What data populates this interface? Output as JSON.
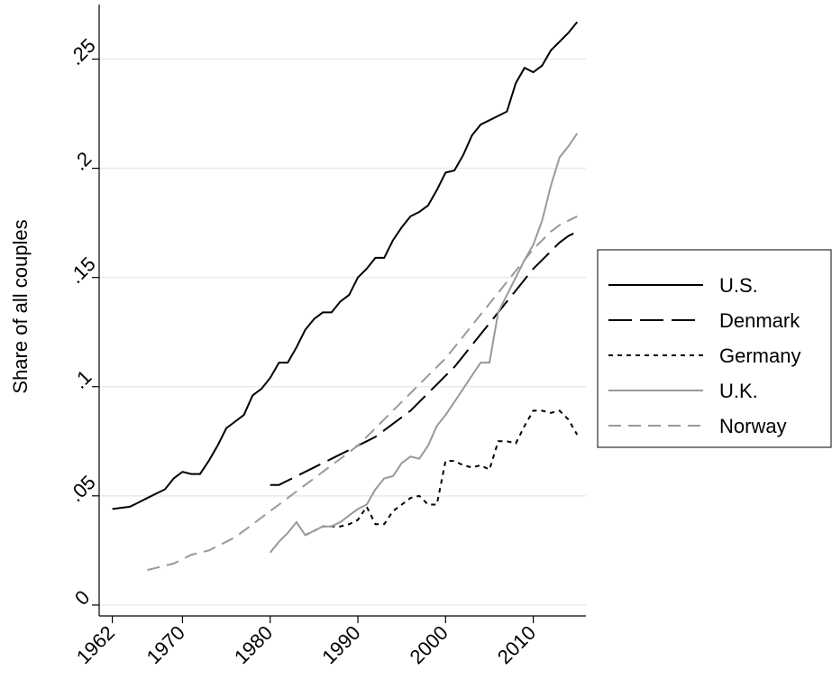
{
  "chart_data": {
    "type": "line",
    "ylabel": "Share of all couples",
    "x": [
      1962,
      1963,
      1964,
      1965,
      1966,
      1967,
      1968,
      1969,
      1970,
      1971,
      1972,
      1973,
      1974,
      1975,
      1976,
      1977,
      1978,
      1979,
      1980,
      1981,
      1982,
      1983,
      1984,
      1985,
      1986,
      1987,
      1988,
      1989,
      1990,
      1991,
      1992,
      1993,
      1994,
      1995,
      1996,
      1997,
      1998,
      1999,
      2000,
      2001,
      2002,
      2003,
      2004,
      2005,
      2006,
      2007,
      2008,
      2009,
      2010,
      2011,
      2012,
      2013,
      2014,
      2015
    ],
    "xlim": [
      1960.5,
      2016
    ],
    "xticks": [
      1962,
      1970,
      1980,
      1990,
      2000,
      2010
    ],
    "ylim": [
      -0.005,
      0.275
    ],
    "yticks": [
      0,
      {
        "value": 0.05,
        "label": ".05"
      },
      {
        "value": 0.1,
        "label": ".1"
      },
      {
        "value": 0.15,
        "label": ".15"
      },
      {
        "value": 0.2,
        "label": ".2"
      },
      {
        "value": 0.25,
        "label": ".25"
      }
    ],
    "grid": true,
    "legend": "right",
    "series": [
      {
        "name": "U.S.",
        "color": "#000000",
        "style": "solid",
        "values": [
          0.044,
          0.0445,
          0.045,
          0.047,
          0.049,
          0.051,
          0.053,
          0.058,
          0.061,
          0.06,
          0.06,
          0.066,
          0.073,
          0.081,
          0.084,
          0.087,
          0.096,
          0.099,
          0.104,
          0.111,
          0.111,
          0.118,
          0.126,
          0.131,
          0.134,
          0.134,
          0.139,
          0.142,
          0.15,
          0.154,
          0.159,
          0.159,
          0.167,
          0.173,
          0.178,
          0.18,
          0.183,
          0.19,
          0.198,
          0.199,
          0.206,
          0.215,
          0.22,
          0.222,
          0.224,
          0.226,
          0.239,
          0.246,
          0.244,
          0.247,
          0.254,
          0.258,
          0.262,
          0.267
        ]
      },
      {
        "name": "Denmark",
        "color": "#000000",
        "style": "longdash",
        "values": [
          null,
          null,
          null,
          null,
          null,
          null,
          null,
          null,
          null,
          null,
          null,
          null,
          null,
          null,
          null,
          null,
          null,
          null,
          0.055,
          0.055,
          0.057,
          0.059,
          0.061,
          0.063,
          0.065,
          0.067,
          0.069,
          0.071,
          0.073,
          0.075,
          0.077,
          0.08,
          0.083,
          0.086,
          0.089,
          0.093,
          0.097,
          0.101,
          0.105,
          0.109,
          0.114,
          0.119,
          0.124,
          0.129,
          0.134,
          0.139,
          0.144,
          0.149,
          0.154,
          0.158,
          0.162,
          0.166,
          0.169,
          0.171
        ]
      },
      {
        "name": "Germany",
        "color": "#000000",
        "style": "shortdash",
        "values": [
          null,
          null,
          null,
          null,
          null,
          null,
          null,
          null,
          null,
          null,
          null,
          null,
          null,
          null,
          null,
          null,
          null,
          null,
          null,
          null,
          null,
          null,
          0.032,
          0.034,
          0.036,
          0.036,
          0.036,
          0.037,
          0.039,
          0.045,
          0.037,
          0.037,
          0.043,
          0.046,
          0.049,
          0.05,
          0.046,
          0.046,
          0.066,
          0.066,
          0.064,
          0.063,
          0.064,
          0.062,
          0.075,
          0.075,
          0.074,
          0.082,
          0.089,
          0.089,
          0.088,
          0.089,
          0.085,
          0.078
        ]
      },
      {
        "name": "U.K.",
        "color": "#999999",
        "style": "solid",
        "values": [
          null,
          null,
          null,
          null,
          null,
          null,
          null,
          null,
          null,
          null,
          null,
          null,
          null,
          null,
          null,
          null,
          null,
          null,
          0.024,
          0.029,
          0.033,
          0.038,
          0.032,
          0.034,
          0.036,
          0.036,
          0.038,
          0.041,
          0.044,
          0.046,
          0.053,
          0.058,
          0.059,
          0.065,
          0.068,
          0.067,
          0.073,
          0.082,
          0.087,
          0.093,
          0.099,
          0.105,
          0.111,
          0.111,
          0.134,
          0.142,
          0.15,
          0.158,
          0.165,
          0.176,
          0.192,
          0.205,
          0.21,
          0.216
        ]
      },
      {
        "name": "Norway",
        "color": "#999999",
        "style": "dash",
        "values": [
          null,
          null,
          null,
          null,
          0.016,
          0.017,
          0.018,
          0.019,
          0.021,
          0.023,
          0.024,
          0.025,
          0.027,
          0.029,
          0.031,
          0.034,
          0.037,
          0.04,
          0.043,
          0.046,
          0.049,
          0.052,
          0.055,
          0.058,
          0.061,
          0.064,
          0.067,
          0.07,
          0.073,
          0.077,
          0.081,
          0.085,
          0.089,
          0.093,
          0.097,
          0.101,
          0.105,
          0.109,
          0.113,
          0.118,
          0.123,
          0.128,
          0.133,
          0.138,
          0.143,
          0.148,
          0.153,
          0.158,
          0.163,
          0.167,
          0.171,
          0.174,
          0.176,
          0.178
        ]
      }
    ]
  }
}
